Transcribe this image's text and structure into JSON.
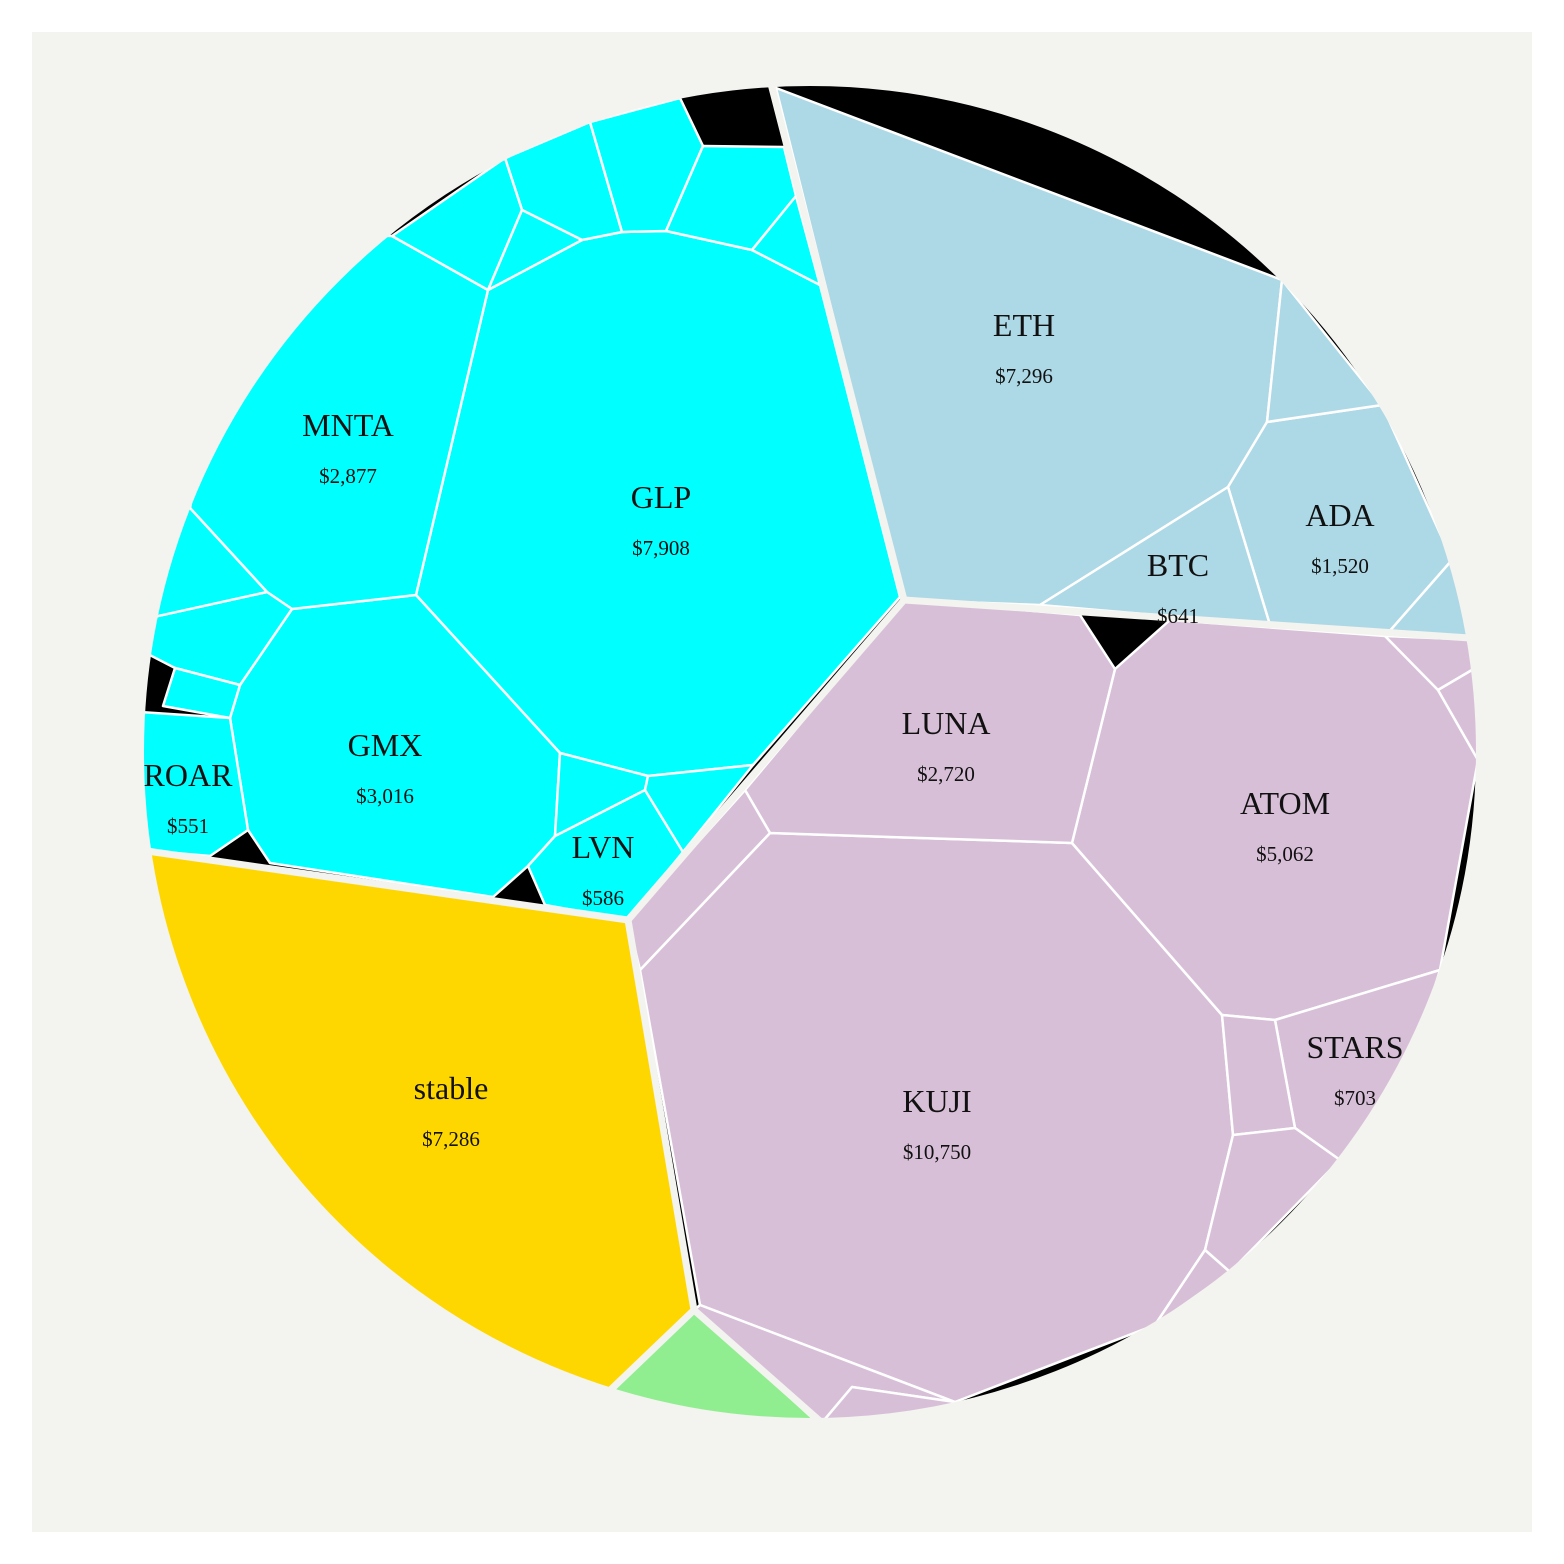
{
  "chart_data": {
    "type": "voronoi-treemap",
    "title": "",
    "grid": false,
    "background_color": "#f3f3ef",
    "groups": [
      {
        "id": "cyan",
        "color": "#00ffff"
      },
      {
        "id": "blue",
        "color": "#add8e6"
      },
      {
        "id": "purple",
        "color": "#d8bfd8"
      },
      {
        "id": "yellow",
        "color": "#ffd700"
      },
      {
        "id": "green",
        "color": "#90ee90"
      }
    ],
    "cells": [
      {
        "group": "cyan",
        "name": "GLP",
        "value": 7908,
        "label": "$7,908"
      },
      {
        "group": "cyan",
        "name": "GMX",
        "value": 3016,
        "label": "$3,016"
      },
      {
        "group": "cyan",
        "name": "MNTA",
        "value": 2877,
        "label": "$2,877"
      },
      {
        "group": "cyan",
        "name": "LVN",
        "value": 586,
        "label": "$586"
      },
      {
        "group": "cyan",
        "name": "ROAR",
        "value": 551,
        "label": "$551"
      },
      {
        "group": "blue",
        "name": "ETH",
        "value": 7296,
        "label": "$7,296"
      },
      {
        "group": "blue",
        "name": "ADA",
        "value": 1520,
        "label": "$1,520"
      },
      {
        "group": "blue",
        "name": "BTC",
        "value": 641,
        "label": "$641"
      },
      {
        "group": "purple",
        "name": "KUJI",
        "value": 10750,
        "label": "$10,750"
      },
      {
        "group": "purple",
        "name": "ATOM",
        "value": 5062,
        "label": "$5,062"
      },
      {
        "group": "purple",
        "name": "LUNA",
        "value": 2720,
        "label": "$2,720"
      },
      {
        "group": "purple",
        "name": "STARS",
        "value": 703,
        "label": "$703"
      },
      {
        "group": "yellow",
        "name": "stable",
        "value": 7286,
        "label": "$7,286"
      }
    ]
  }
}
